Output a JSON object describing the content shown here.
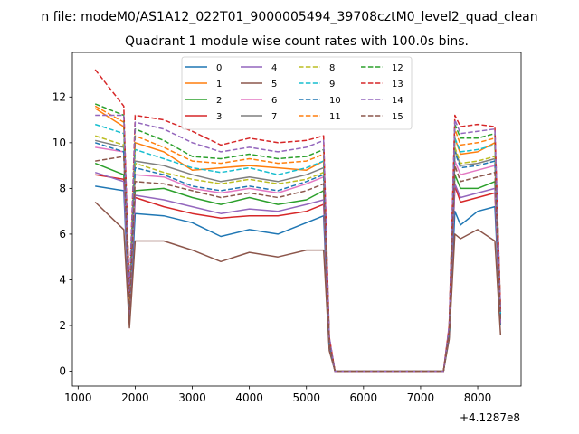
{
  "chart_data": {
    "type": "line",
    "suptitle": "n file: modeM0/AS1A12_022T01_9000005494_39708cztM0_level2_quad_clean",
    "title": "Quadrant 1 module wise count rates with 100.0s bins.",
    "xlabel": "",
    "ylabel": "",
    "x_offset_label": "+4.1287e8",
    "xlim": [
      900,
      8760
    ],
    "ylim": [
      -0.65,
      13.95
    ],
    "x_ticks": [
      1000,
      2000,
      3000,
      4000,
      5000,
      6000,
      7000,
      8000
    ],
    "x_tick_labels": [
      "1000",
      "2000",
      "3000",
      "4000",
      "5000",
      "6000",
      "7000",
      "8000"
    ],
    "y_ticks": [
      0,
      2,
      4,
      6,
      8,
      10,
      12
    ],
    "y_tick_labels": [
      "0",
      "2",
      "4",
      "6",
      "8",
      "10",
      "12"
    ],
    "legend_location": "upper center",
    "x": [
      1300,
      1800,
      1900,
      2000,
      2500,
      3000,
      3500,
      4000,
      4500,
      5000,
      5300,
      5400,
      5500,
      6000,
      6500,
      7000,
      7400,
      7500,
      7600,
      7700,
      8000,
      8300,
      8400
    ],
    "series": [
      {
        "name": "0",
        "color": "#1f77b4",
        "dash": "solid",
        "values": [
          8.1,
          7.9,
          2.2,
          6.9,
          6.8,
          6.5,
          5.9,
          6.2,
          6.0,
          6.5,
          6.8,
          1.0,
          0,
          0,
          0,
          0,
          0,
          1.5,
          7.0,
          6.4,
          7.0,
          7.2,
          2.0
        ]
      },
      {
        "name": "1",
        "color": "#ff7f0e",
        "dash": "solid",
        "values": [
          11.5,
          10.7,
          3.0,
          10.0,
          9.6,
          8.8,
          8.9,
          9.0,
          8.9,
          8.8,
          9.2,
          1.4,
          0,
          0,
          0,
          0,
          0,
          1.8,
          10.2,
          9.5,
          9.6,
          10.0,
          2.5
        ]
      },
      {
        "name": "2",
        "color": "#2ca02c",
        "dash": "solid",
        "values": [
          9.1,
          8.6,
          2.6,
          7.9,
          8.0,
          7.6,
          7.3,
          7.6,
          7.3,
          7.5,
          7.9,
          1.2,
          0,
          0,
          0,
          0,
          0,
          1.7,
          8.6,
          8.0,
          8.0,
          8.3,
          2.2
        ]
      },
      {
        "name": "3",
        "color": "#d62728",
        "dash": "solid",
        "values": [
          8.6,
          8.4,
          2.5,
          7.6,
          7.2,
          6.9,
          6.7,
          6.8,
          6.8,
          7.0,
          7.3,
          1.1,
          0,
          0,
          0,
          0,
          0,
          1.6,
          8.1,
          7.4,
          7.6,
          7.8,
          2.1
        ]
      },
      {
        "name": "4",
        "color": "#9467bd",
        "dash": "solid",
        "values": [
          8.7,
          8.3,
          2.5,
          7.7,
          7.5,
          7.2,
          6.9,
          7.1,
          7.0,
          7.3,
          7.5,
          1.1,
          0,
          0,
          0,
          0,
          0,
          1.6,
          8.2,
          7.6,
          7.8,
          8.0,
          2.1
        ]
      },
      {
        "name": "5",
        "color": "#8c564b",
        "dash": "solid",
        "values": [
          7.4,
          6.2,
          1.9,
          5.7,
          5.7,
          5.3,
          4.8,
          5.2,
          5.0,
          5.3,
          5.3,
          0.9,
          0,
          0,
          0,
          0,
          0,
          1.4,
          6.0,
          5.8,
          6.2,
          5.7,
          1.6
        ]
      },
      {
        "name": "6",
        "color": "#e377c2",
        "dash": "solid",
        "values": [
          9.8,
          9.6,
          2.8,
          8.6,
          8.5,
          8.0,
          7.8,
          8.0,
          7.8,
          8.2,
          8.5,
          1.2,
          0,
          0,
          0,
          0,
          0,
          1.7,
          9.2,
          8.6,
          8.8,
          9.0,
          2.3
        ]
      },
      {
        "name": "7",
        "color": "#7f7f7f",
        "dash": "solid",
        "values": [
          10.1,
          9.8,
          2.9,
          9.2,
          9.0,
          8.6,
          8.3,
          8.5,
          8.3,
          8.6,
          8.9,
          1.3,
          0,
          0,
          0,
          0,
          0,
          1.8,
          9.7,
          9.0,
          9.1,
          9.3,
          2.4
        ]
      },
      {
        "name": "8",
        "color": "#bcbd22",
        "dash": "dashed",
        "values": [
          10.3,
          9.9,
          2.9,
          9.1,
          8.7,
          8.4,
          8.2,
          8.4,
          8.2,
          8.4,
          8.7,
          1.3,
          0,
          0,
          0,
          0,
          0,
          1.8,
          9.8,
          9.1,
          9.2,
          9.4,
          2.4
        ]
      },
      {
        "name": "9",
        "color": "#17becf",
        "dash": "dashed",
        "values": [
          10.8,
          10.4,
          3.0,
          9.7,
          9.3,
          8.9,
          8.7,
          8.9,
          8.6,
          8.9,
          9.2,
          1.3,
          0,
          0,
          0,
          0,
          0,
          1.8,
          10.2,
          9.6,
          9.7,
          9.9,
          2.5
        ]
      },
      {
        "name": "10",
        "color": "#1f77b4",
        "dash": "dashed",
        "values": [
          10.0,
          9.6,
          2.8,
          8.9,
          8.6,
          8.1,
          7.9,
          8.1,
          7.9,
          8.3,
          8.6,
          1.2,
          0,
          0,
          0,
          0,
          0,
          1.7,
          9.6,
          8.9,
          9.0,
          9.2,
          2.3
        ]
      },
      {
        "name": "11",
        "color": "#ff7f0e",
        "dash": "dashed",
        "values": [
          11.6,
          10.9,
          3.1,
          10.3,
          9.8,
          9.2,
          9.1,
          9.3,
          9.1,
          9.2,
          9.5,
          1.4,
          0,
          0,
          0,
          0,
          0,
          1.9,
          10.6,
          9.9,
          10.0,
          10.2,
          2.6
        ]
      },
      {
        "name": "12",
        "color": "#2ca02c",
        "dash": "dashed",
        "values": [
          11.7,
          11.2,
          3.2,
          10.6,
          10.1,
          9.4,
          9.3,
          9.5,
          9.3,
          9.4,
          9.7,
          1.4,
          0,
          0,
          0,
          0,
          0,
          1.9,
          10.8,
          10.2,
          10.2,
          10.4,
          2.6
        ]
      },
      {
        "name": "13",
        "color": "#d62728",
        "dash": "dashed",
        "values": [
          13.2,
          11.6,
          3.4,
          11.2,
          11.0,
          10.5,
          9.9,
          10.2,
          10.0,
          10.1,
          10.3,
          1.5,
          0,
          0,
          0,
          0,
          0,
          2.0,
          11.2,
          10.7,
          10.8,
          10.7,
          2.7
        ]
      },
      {
        "name": "14",
        "color": "#9467bd",
        "dash": "dashed",
        "values": [
          11.2,
          11.2,
          3.3,
          10.9,
          10.6,
          10.0,
          9.6,
          9.8,
          9.6,
          9.8,
          10.1,
          1.5,
          0,
          0,
          0,
          0,
          0,
          2.0,
          11.0,
          10.4,
          10.5,
          10.6,
          2.6
        ]
      },
      {
        "name": "15",
        "color": "#8c564b",
        "dash": "dashed",
        "values": [
          9.2,
          9.4,
          2.7,
          8.3,
          8.2,
          7.9,
          7.6,
          7.8,
          7.6,
          7.9,
          8.2,
          1.2,
          0,
          0,
          0,
          0,
          0,
          1.7,
          9.0,
          8.3,
          8.5,
          8.7,
          2.2
        ]
      }
    ]
  }
}
